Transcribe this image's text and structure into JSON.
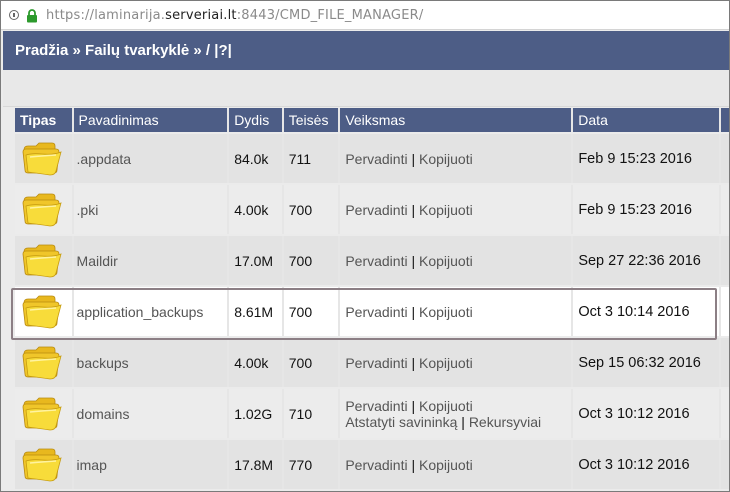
{
  "browser": {
    "url_prefix": "https://laminarija.",
    "url_domain": "serveriai.lt",
    "url_suffix": ":8443/CMD_FILE_MANAGER/"
  },
  "breadcrumb": {
    "text": "Pradžia » Failų tvarkyklė » / |?|"
  },
  "table": {
    "headers": {
      "type": "Tipas",
      "name": "Pavadinimas",
      "size": "Dydis",
      "perm": "Teisės",
      "action": "Veiksmas",
      "date": "Data"
    },
    "rows": [
      {
        "name": ".appdata",
        "size": "84.0k",
        "perm": "711",
        "actions": [
          [
            "Pervadinti",
            "Kopijuoti"
          ]
        ],
        "date": "Feb 9 15:23 2016"
      },
      {
        "name": ".pki",
        "size": "4.00k",
        "perm": "700",
        "actions": [
          [
            "Pervadinti",
            "Kopijuoti"
          ]
        ],
        "date": "Feb 9 15:23 2016"
      },
      {
        "name": "Maildir",
        "size": "17.0M",
        "perm": "700",
        "actions": [
          [
            "Pervadinti",
            "Kopijuoti"
          ]
        ],
        "date": "Sep 27 22:36 2016"
      },
      {
        "name": "application_backups",
        "size": "8.61M",
        "perm": "700",
        "actions": [
          [
            "Pervadinti",
            "Kopijuoti"
          ]
        ],
        "date": "Oct 3 10:14 2016",
        "selected": true
      },
      {
        "name": "backups",
        "size": "4.00k",
        "perm": "700",
        "actions": [
          [
            "Pervadinti",
            "Kopijuoti"
          ]
        ],
        "date": "Sep 15 06:32 2016"
      },
      {
        "name": "domains",
        "size": "1.02G",
        "perm": "710",
        "actions": [
          [
            "Pervadinti",
            "Kopijuoti"
          ],
          [
            "Atstatyti savininką",
            "Rekursyviai"
          ]
        ],
        "date": "Oct 3 10:12 2016"
      },
      {
        "name": "imap",
        "size": "17.8M",
        "perm": "770",
        "actions": [
          [
            "Pervadinti",
            "Kopijuoti"
          ]
        ],
        "date": "Oct 3 10:12 2016"
      }
    ],
    "separator": "|"
  },
  "colors": {
    "header_bg": "#4d5d86",
    "folder_yellow": "#f6d32d"
  }
}
